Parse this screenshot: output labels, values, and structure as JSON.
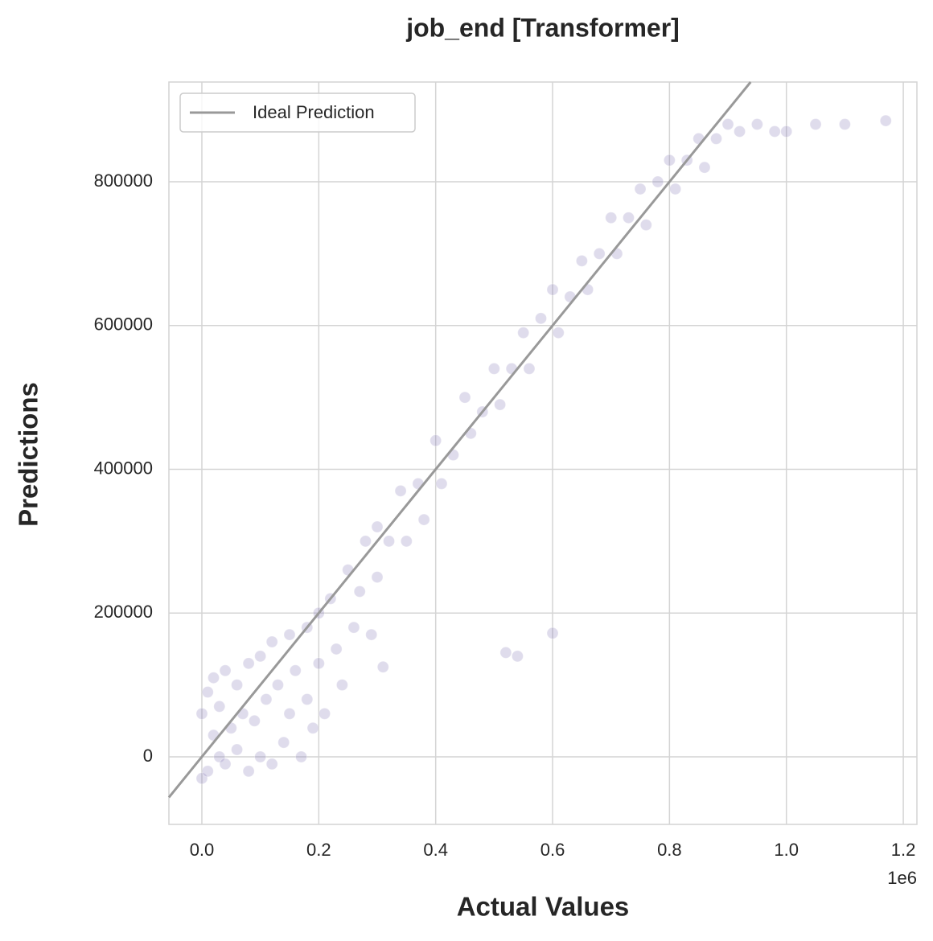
{
  "chart_data": {
    "type": "scatter",
    "title": "job_end [Transformer]",
    "x_label": "Actual Values",
    "y_label": "Predictions",
    "x_offset_label": "1e6",
    "xlim": [
      -56400,
      1223300
    ],
    "ylim": [
      -94000,
      938800
    ],
    "xticks": [
      {
        "value": 0,
        "label": "0.0"
      },
      {
        "value": 200000,
        "label": "0.2"
      },
      {
        "value": 400000,
        "label": "0.4"
      },
      {
        "value": 600000,
        "label": "0.6"
      },
      {
        "value": 800000,
        "label": "0.8"
      },
      {
        "value": 1000000,
        "label": "1.0"
      },
      {
        "value": 1200000,
        "label": "1.2"
      }
    ],
    "yticks": [
      0,
      200000,
      400000,
      600000,
      800000
    ],
    "grid": true,
    "legend": "upper left",
    "reference_line": {
      "name": "Ideal Prediction",
      "color": "#999999"
    },
    "series": [
      {
        "color": "#8172b3",
        "opacity": 0.25,
        "x": [
          0,
          0,
          10000,
          10000,
          20000,
          20000,
          30000,
          30000,
          40000,
          40000,
          50000,
          60000,
          60000,
          70000,
          80000,
          80000,
          90000,
          100000,
          100000,
          110000,
          120000,
          120000,
          130000,
          140000,
          150000,
          150000,
          160000,
          170000,
          180000,
          180000,
          190000,
          200000,
          200000,
          210000,
          220000,
          230000,
          240000,
          250000,
          260000,
          270000,
          280000,
          290000,
          300000,
          300000,
          320000,
          340000,
          350000,
          370000,
          380000,
          400000,
          410000,
          430000,
          450000,
          460000,
          480000,
          500000,
          510000,
          530000,
          550000,
          560000,
          580000,
          600000,
          610000,
          630000,
          650000,
          660000,
          680000,
          700000,
          710000,
          730000,
          750000,
          760000,
          780000,
          800000,
          810000,
          830000,
          850000,
          860000,
          880000,
          900000,
          920000,
          950000,
          980000,
          1000000,
          1050000,
          1100000,
          1170000,
          520000,
          540000,
          600000,
          310000
        ],
        "y": [
          -30000,
          60000,
          -20000,
          90000,
          30000,
          110000,
          0,
          70000,
          -10000,
          120000,
          40000,
          10000,
          100000,
          60000,
          -20000,
          130000,
          50000,
          0,
          140000,
          80000,
          -10000,
          160000,
          100000,
          20000,
          170000,
          60000,
          120000,
          0,
          180000,
          80000,
          40000,
          200000,
          130000,
          60000,
          220000,
          150000,
          100000,
          260000,
          180000,
          230000,
          300000,
          170000,
          320000,
          250000,
          300000,
          370000,
          300000,
          380000,
          330000,
          440000,
          380000,
          420000,
          500000,
          450000,
          480000,
          540000,
          490000,
          540000,
          590000,
          540000,
          610000,
          650000,
          590000,
          640000,
          690000,
          650000,
          700000,
          750000,
          700000,
          750000,
          790000,
          740000,
          800000,
          830000,
          790000,
          830000,
          860000,
          820000,
          860000,
          880000,
          870000,
          880000,
          870000,
          870000,
          880000,
          880000,
          885000,
          145000,
          140000,
          172000,
          125000
        ]
      }
    ]
  }
}
